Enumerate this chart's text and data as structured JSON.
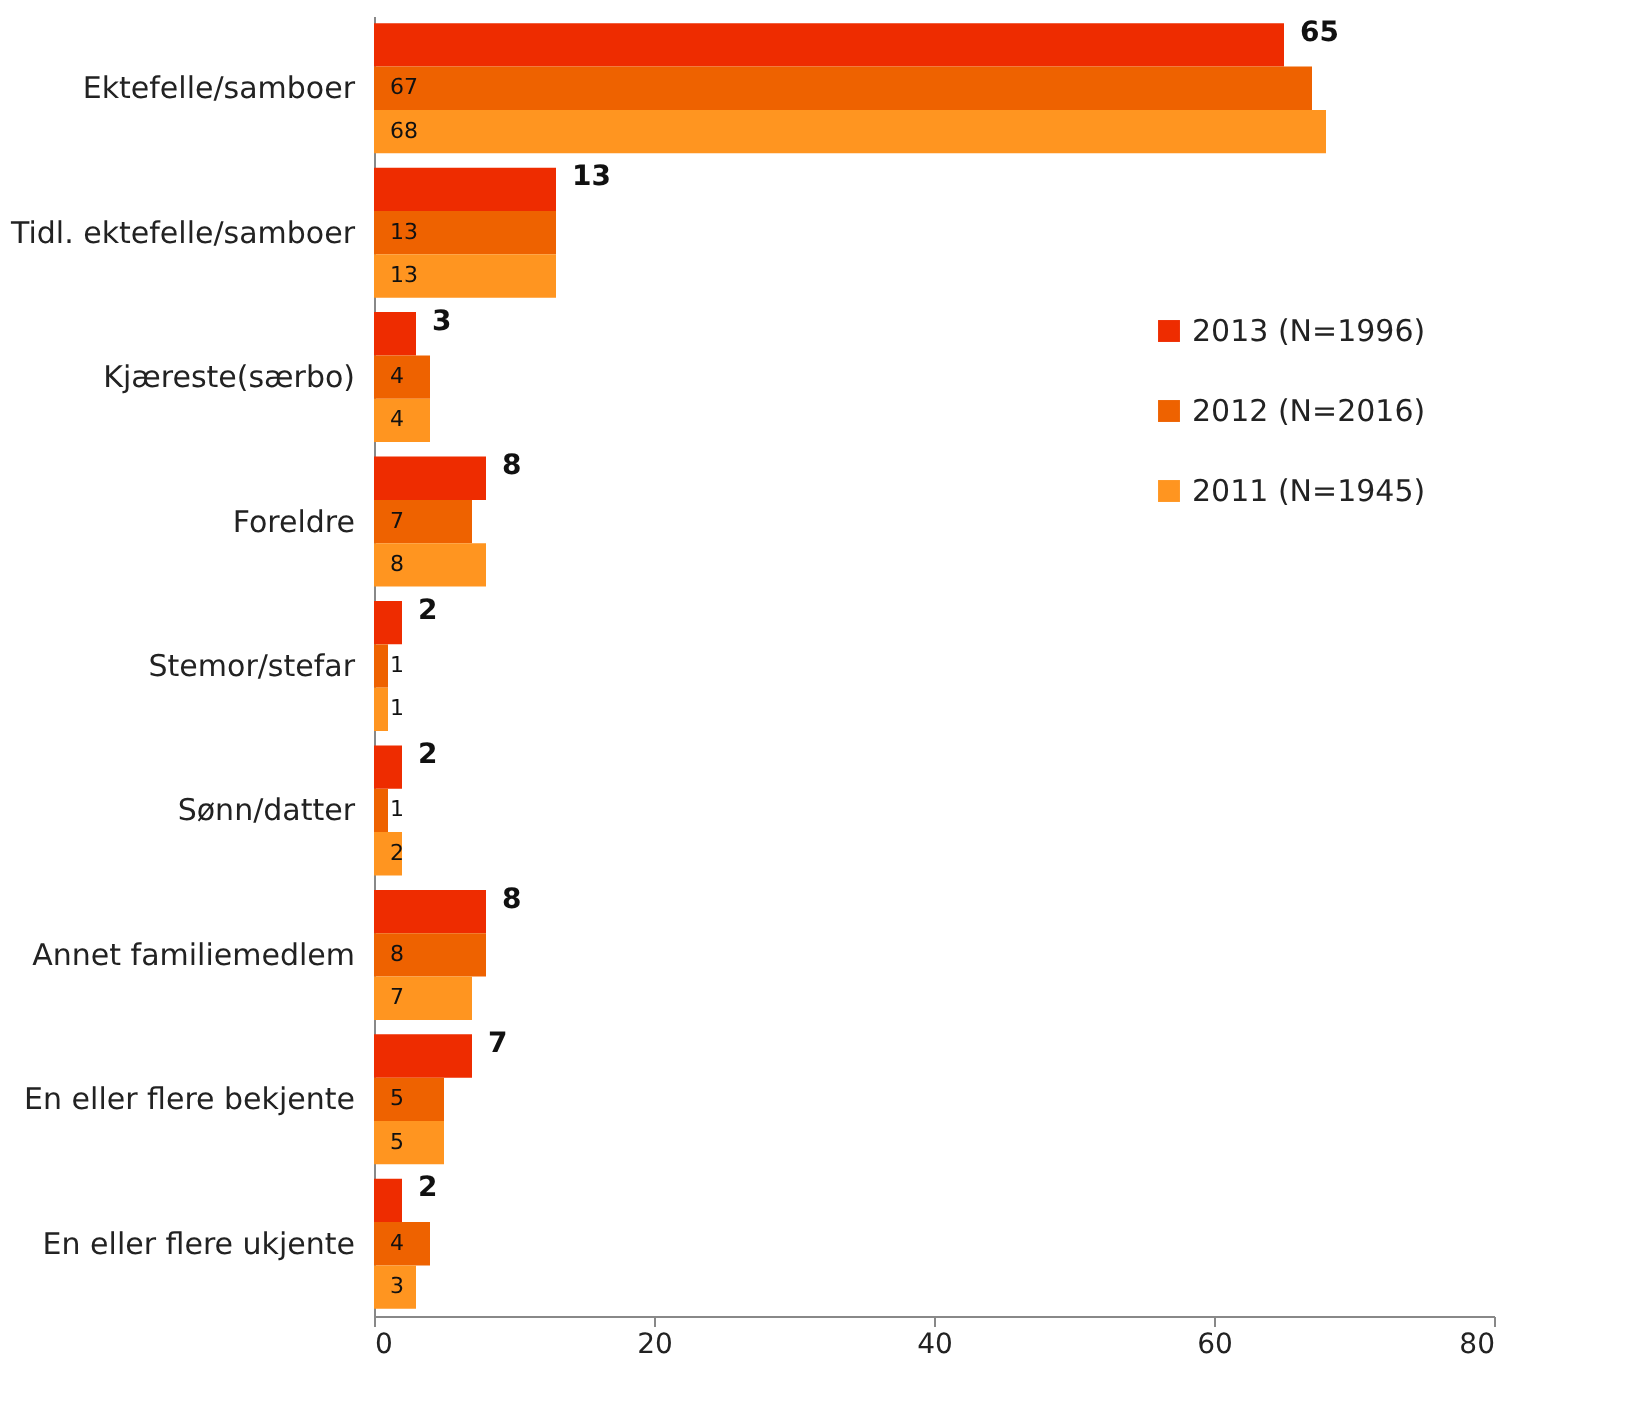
{
  "chart_data": {
    "type": "bar",
    "orientation": "horizontal",
    "categories": [
      "Ektefelle/samboer",
      "Tidl. ektefelle/samboer",
      "Kjæreste(særbo)",
      "Foreldre",
      "Stemor/stefar",
      "Sønn/datter",
      "Annet familiemedlem",
      "En eller flere bekjente",
      "En eller flere ukjente"
    ],
    "series": [
      {
        "name": "2013 (N=1996)",
        "color": "#ee2c00",
        "values": [
          65,
          13,
          3,
          8,
          2,
          2,
          8,
          7,
          2
        ]
      },
      {
        "name": "2012 (N=2016)",
        "color": "#ee6200",
        "values": [
          67,
          13,
          4,
          7,
          1,
          1,
          8,
          5,
          4
        ]
      },
      {
        "name": "2011 (N=1945)",
        "color": "#ff9520",
        "values": [
          68,
          13,
          4,
          8,
          1,
          2,
          7,
          5,
          3
        ]
      }
    ],
    "xlim": [
      0,
      80
    ],
    "xticks": [
      0,
      20,
      40,
      60,
      80
    ],
    "grid": false,
    "legend": "right",
    "data_labels": true
  }
}
